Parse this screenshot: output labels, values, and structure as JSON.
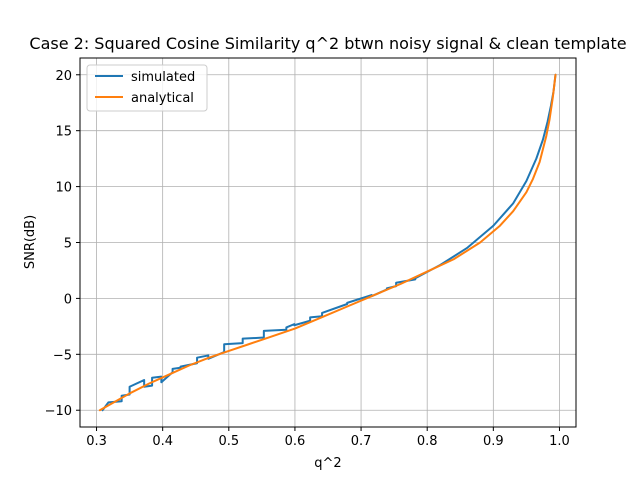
{
  "chart_data": {
    "type": "line",
    "title": "Case 2: Squared Cosine Similarity q^2 btwn noisy signal & clean template",
    "xlabel": "q^2",
    "ylabel": "SNR(dB)",
    "xlim": [
      0.275,
      1.025
    ],
    "ylim": [
      -11.5,
      21.5
    ],
    "xticks": [
      0.3,
      0.4,
      0.5,
      0.6,
      0.7,
      0.8,
      0.9,
      1.0
    ],
    "xtick_labels": [
      "0.3",
      "0.4",
      "0.5",
      "0.6",
      "0.7",
      "0.8",
      "0.9",
      "1.0"
    ],
    "yticks": [
      -10,
      -5,
      0,
      5,
      10,
      15,
      20
    ],
    "ytick_labels": [
      "−10",
      "−5",
      "0",
      "5",
      "10",
      "15",
      "20"
    ],
    "grid": true,
    "legend_position": "top-left",
    "series": [
      {
        "name": "simulated",
        "color": "#1f77b4",
        "x": [
          0.309,
          0.318,
          0.318,
          0.338,
          0.338,
          0.35,
          0.35,
          0.372,
          0.372,
          0.384,
          0.384,
          0.398,
          0.398,
          0.415,
          0.415,
          0.427,
          0.427,
          0.452,
          0.452,
          0.469,
          0.469,
          0.493,
          0.493,
          0.521,
          0.521,
          0.553,
          0.553,
          0.587,
          0.587,
          0.599,
          0.599,
          0.623,
          0.623,
          0.641,
          0.641,
          0.679,
          0.679,
          0.716,
          0.716,
          0.739,
          0.739,
          0.753,
          0.753,
          0.782,
          0.782,
          0.82,
          0.86,
          0.9,
          0.93,
          0.95,
          0.965,
          0.975,
          0.982,
          0.987,
          0.991,
          0.994
        ],
        "y": [
          -10.0,
          -9.3,
          -9.3,
          -9.2,
          -8.7,
          -8.6,
          -7.9,
          -7.3,
          -7.9,
          -7.8,
          -7.1,
          -7.0,
          -7.5,
          -6.6,
          -6.3,
          -6.2,
          -6.1,
          -5.8,
          -5.3,
          -5.1,
          -5.4,
          -4.8,
          -4.1,
          -4.0,
          -3.6,
          -3.5,
          -2.9,
          -2.8,
          -2.6,
          -2.3,
          -2.4,
          -2.0,
          -1.7,
          -1.6,
          -1.3,
          -0.5,
          -0.4,
          0.3,
          0.2,
          0.8,
          0.9,
          1.1,
          1.4,
          1.7,
          1.8,
          3.0,
          4.5,
          6.5,
          8.5,
          10.5,
          12.5,
          14.2,
          15.8,
          17.2,
          18.5,
          20.0
        ]
      },
      {
        "name": "analytical",
        "color": "#ff7f0e",
        "x": [
          0.305,
          0.32,
          0.35,
          0.38,
          0.41,
          0.44,
          0.47,
          0.5,
          0.53,
          0.56,
          0.6,
          0.64,
          0.68,
          0.72,
          0.76,
          0.8,
          0.84,
          0.88,
          0.91,
          0.93,
          0.95,
          0.96,
          0.97,
          0.98,
          0.985,
          0.99,
          0.993,
          0.994
        ],
        "y": [
          -10.0,
          -9.5,
          -8.5,
          -7.6,
          -6.8,
          -6.0,
          -5.3,
          -4.7,
          -4.1,
          -3.5,
          -2.7,
          -1.7,
          -0.7,
          0.3,
          1.3,
          2.4,
          3.5,
          5.0,
          6.5,
          7.8,
          9.5,
          10.7,
          12.2,
          14.5,
          16.0,
          18.0,
          19.5,
          20.0
        ]
      }
    ]
  }
}
